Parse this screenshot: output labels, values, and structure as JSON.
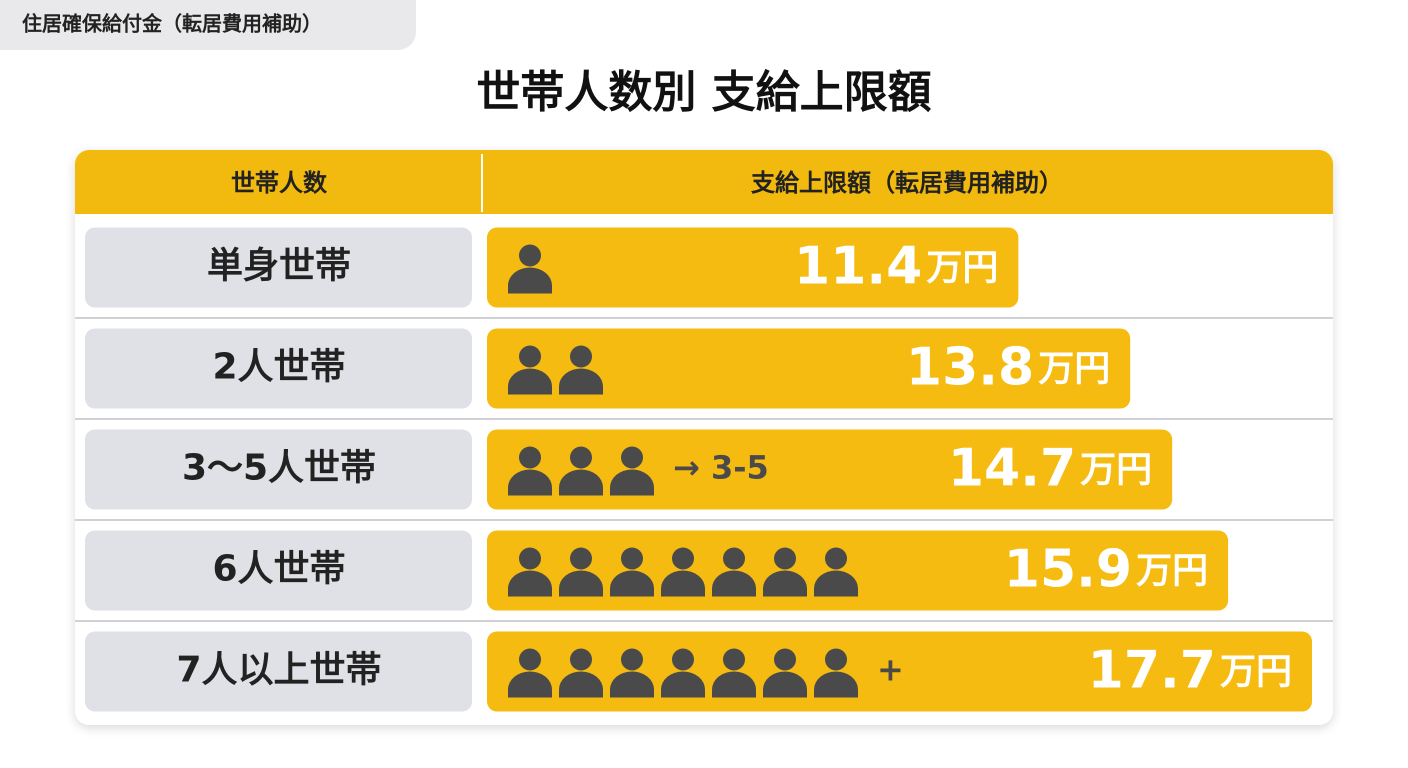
{
  "chart_data": {
    "type": "bar",
    "badge": "住居確保給付金（転居費用補助）",
    "title": "世帯人数別 支給上限額",
    "category_header": "世帯人数",
    "value_header": "支給上限額（転居費用補助）",
    "categories": [
      "単身世帯",
      "2人世帯",
      "3〜5人世帯",
      "6人世帯",
      "7人以上世帯"
    ],
    "values": [
      11.4,
      13.8,
      14.7,
      15.9,
      17.7
    ],
    "unit": "万円",
    "icons": [
      1,
      2,
      3,
      7,
      7
    ],
    "icon_notes": [
      null,
      null,
      "→ 3-5",
      null,
      "+"
    ],
    "color": "#f5bb10",
    "header_color": "#f2b90f",
    "label_box_color": "#dfe1e6",
    "icon_color": "#4a4a4a"
  }
}
